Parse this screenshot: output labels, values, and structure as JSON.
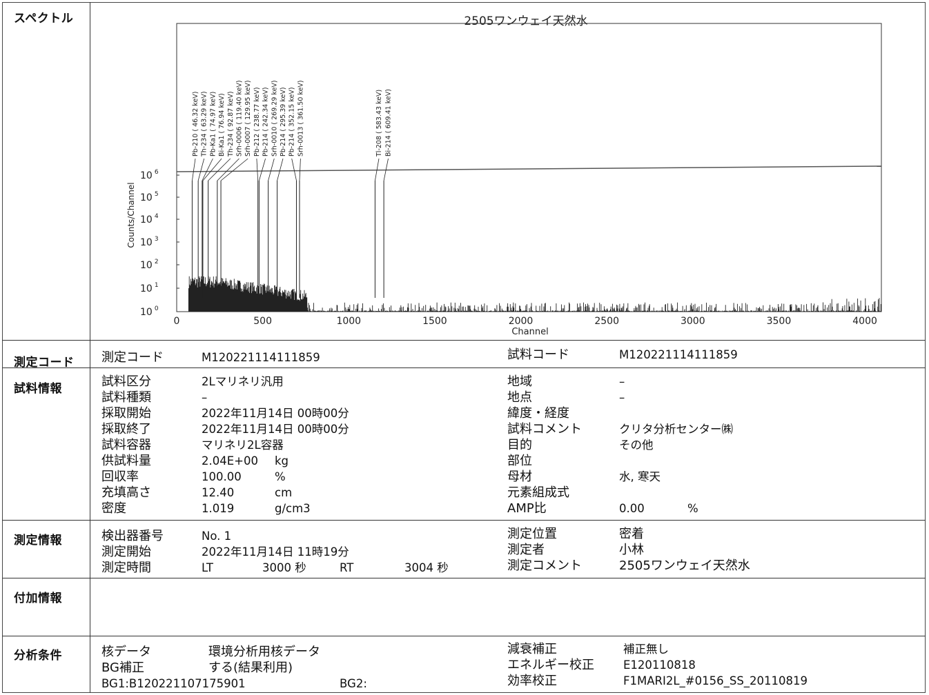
{
  "sections": {
    "spectrum": "スペクトル",
    "code": "測定コード",
    "sample": "試料情報",
    "measure": "測定情報",
    "additional": "付加情報",
    "analysis": "分析条件"
  },
  "code_row": {
    "left_label": "測定コード",
    "left_value": "M120221114111859",
    "right_label": "試料コード",
    "right_value": "M120221114111859"
  },
  "sample_left": [
    {
      "label": "試料区分",
      "value": "2Lマリネリ汎用",
      "unit": ""
    },
    {
      "label": "試料種類",
      "value": "–",
      "unit": ""
    },
    {
      "label": "採取開始",
      "value": "2022年11月14日 00時00分",
      "unit": ""
    },
    {
      "label": "採取終了",
      "value": "2022年11月14日 00時00分",
      "unit": ""
    },
    {
      "label": "試料容器",
      "value": "マリネリ2L容器",
      "unit": ""
    },
    {
      "label": "供試料量",
      "value": "2.04E+00",
      "unit": "kg"
    },
    {
      "label": "回収率",
      "value": "100.00",
      "unit": "%"
    },
    {
      "label": "充填高さ",
      "value": "12.40",
      "unit": "cm"
    },
    {
      "label": "密度",
      "value": "1.019",
      "unit": "g/cm3"
    }
  ],
  "sample_right": [
    {
      "label": "地域",
      "value": "–"
    },
    {
      "label": "地点",
      "value": "–"
    },
    {
      "label": "緯度・経度",
      "value": ""
    },
    {
      "label": "試料コメント",
      "value": "クリタ分析センター㈱"
    },
    {
      "label": "目的",
      "value": "その他"
    },
    {
      "label": "部位",
      "value": ""
    },
    {
      "label": "母材",
      "value": "水, 寒天"
    },
    {
      "label": "元素組成式",
      "value": ""
    },
    {
      "label": "AMP比",
      "value": "0.00",
      "unit": "%"
    }
  ],
  "measure_left": {
    "detector_label": "検出器番号",
    "detector_value": "No. 1",
    "start_label": "測定開始",
    "start_value": "2022年11月14日 11時19分",
    "time_label": "測定時間",
    "lt_label": "LT",
    "lt_value": "3000 秒",
    "rt_label": "RT",
    "rt_value": "3004 秒"
  },
  "measure_right": [
    {
      "label": "測定位置",
      "value": "密着"
    },
    {
      "label": "測定者",
      "value": "小林"
    },
    {
      "label": "測定コメント",
      "value": "2505ワンウェイ天然水"
    }
  ],
  "analysis_left": {
    "nuc_label": "核データ",
    "nuc_value": "環境分析用核データ",
    "bg_label": "BG補正",
    "bg_value": "する(結果利用)",
    "bg1": "BG1:B120221107175901",
    "bg2": "BG2:"
  },
  "analysis_right": [
    {
      "label": "減衰補正",
      "value": "補正無し"
    },
    {
      "label": "エネルギー校正",
      "value": "E120110818"
    },
    {
      "label": "効率校正",
      "value": "F1MARI2L_#0156_SS_20110819"
    }
  ],
  "chart_data": {
    "type": "line",
    "title": "2505ワンウェイ天然水",
    "xlabel": "Channel",
    "ylabel": "Counts/Channel",
    "xlim": [
      0,
      4096
    ],
    "x_ticks": [
      0,
      500,
      1000,
      1500,
      2000,
      2500,
      3000,
      3500,
      4000
    ],
    "y_scale": "log",
    "y_ticks": [
      {
        "base": "10",
        "exp": "0"
      },
      {
        "base": "10",
        "exp": "1"
      },
      {
        "base": "10",
        "exp": "2"
      },
      {
        "base": "10",
        "exp": "3"
      },
      {
        "base": "10",
        "exp": "4"
      },
      {
        "base": "10",
        "exp": "5"
      },
      {
        "base": "10",
        "exp": "6"
      }
    ],
    "peaks": [
      {
        "channel": 90,
        "label": "Pb-210 (  46.32 keV)"
      },
      {
        "channel": 125,
        "label": "Th-234 (  63.29 keV)"
      },
      {
        "channel": 148,
        "label": "Pb-Ka1 (  74.97 keV)"
      },
      {
        "channel": 152,
        "label": "Bi-Ka1 (  76.94 keV)"
      },
      {
        "channel": 183,
        "label": "Th-234 (  92.87 keV)"
      },
      {
        "channel": 236,
        "label": "Srh-0006 ( 119.40 keV)"
      },
      {
        "channel": 257,
        "label": "Srh-0007 ( 129.95 keV)"
      },
      {
        "channel": 472,
        "label": "Pb-212 ( 238.77 keV)"
      },
      {
        "channel": 479,
        "label": "Pb-214 ( 242.34 keV)"
      },
      {
        "channel": 532,
        "label": "Srh-0010 ( 269.29 keV)"
      },
      {
        "channel": 584,
        "label": "Pb-214 ( 295.39 keV)"
      },
      {
        "channel": 696,
        "label": "Pb-214 ( 352.15 keV)"
      },
      {
        "channel": 714,
        "label": "Srh-0013 ( 361.50 keV)"
      },
      {
        "channel": 1153,
        "label": "Tl-208 ( 583.43 keV)"
      },
      {
        "channel": 1204,
        "label": "Bi-214 ( 609.41 keV)"
      }
    ]
  }
}
